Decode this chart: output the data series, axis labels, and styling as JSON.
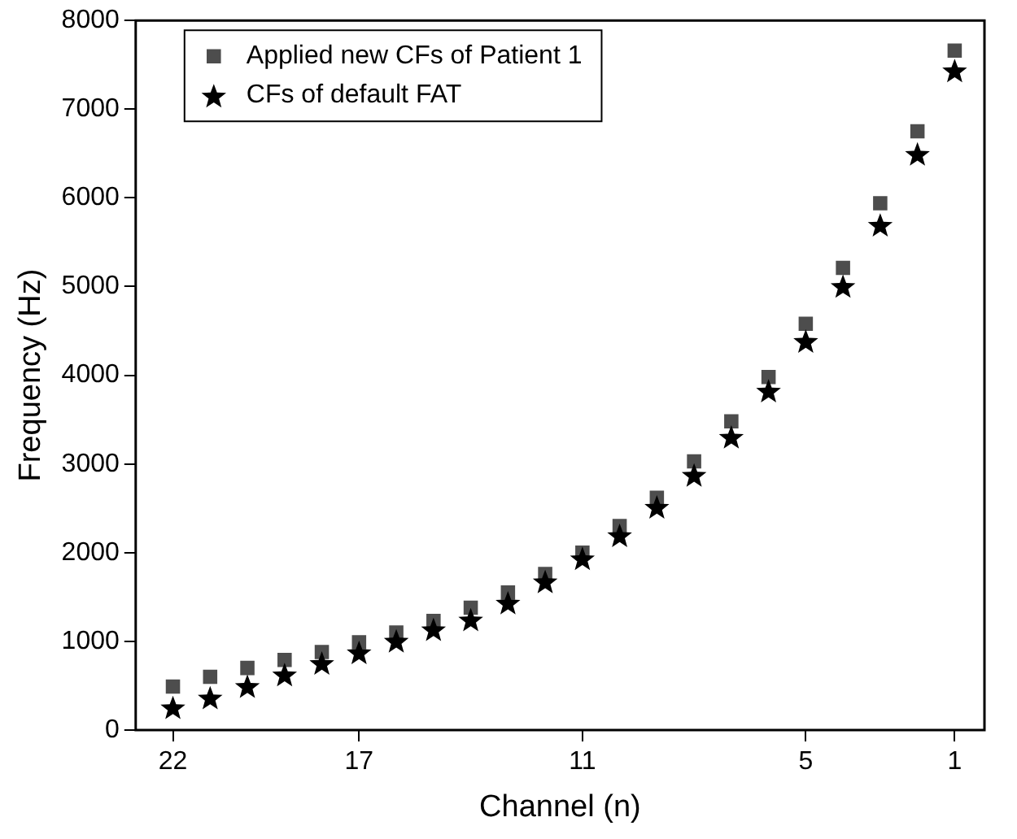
{
  "chart_data": {
    "type": "scatter",
    "xlabel": "Channel (n)",
    "ylabel": "Frequency (Hz)",
    "x": [
      22,
      21,
      20,
      19,
      18,
      17,
      16,
      15,
      14,
      13,
      12,
      11,
      10,
      9,
      8,
      7,
      6,
      5,
      4,
      3,
      2,
      1
    ],
    "series": [
      {
        "name": "Applied new CFs of Patient 1",
        "color": "#4d4d4d",
        "marker": "square",
        "values": [
          490,
          600,
          700,
          790,
          880,
          990,
          1100,
          1230,
          1380,
          1550,
          1760,
          2000,
          2300,
          2620,
          3030,
          3480,
          3980,
          4580,
          5210,
          5940,
          6750,
          7660
        ]
      },
      {
        "name": "CFs of default FAT",
        "color": "#000000",
        "marker": "star",
        "values": [
          260,
          370,
          500,
          630,
          760,
          880,
          1010,
          1140,
          1250,
          1440,
          1680,
          1940,
          2200,
          2520,
          2880,
          3310,
          3830,
          4390,
          5010,
          5700,
          6500,
          7440
        ]
      }
    ],
    "xlim": [
      23,
      0.2
    ],
    "xticks": [
      22,
      17,
      11,
      5,
      1
    ],
    "ylim": [
      0,
      8000
    ],
    "yticks": [
      0,
      1000,
      2000,
      3000,
      4000,
      5000,
      6000,
      7000,
      8000
    ],
    "grid": false,
    "legend": "top left"
  }
}
